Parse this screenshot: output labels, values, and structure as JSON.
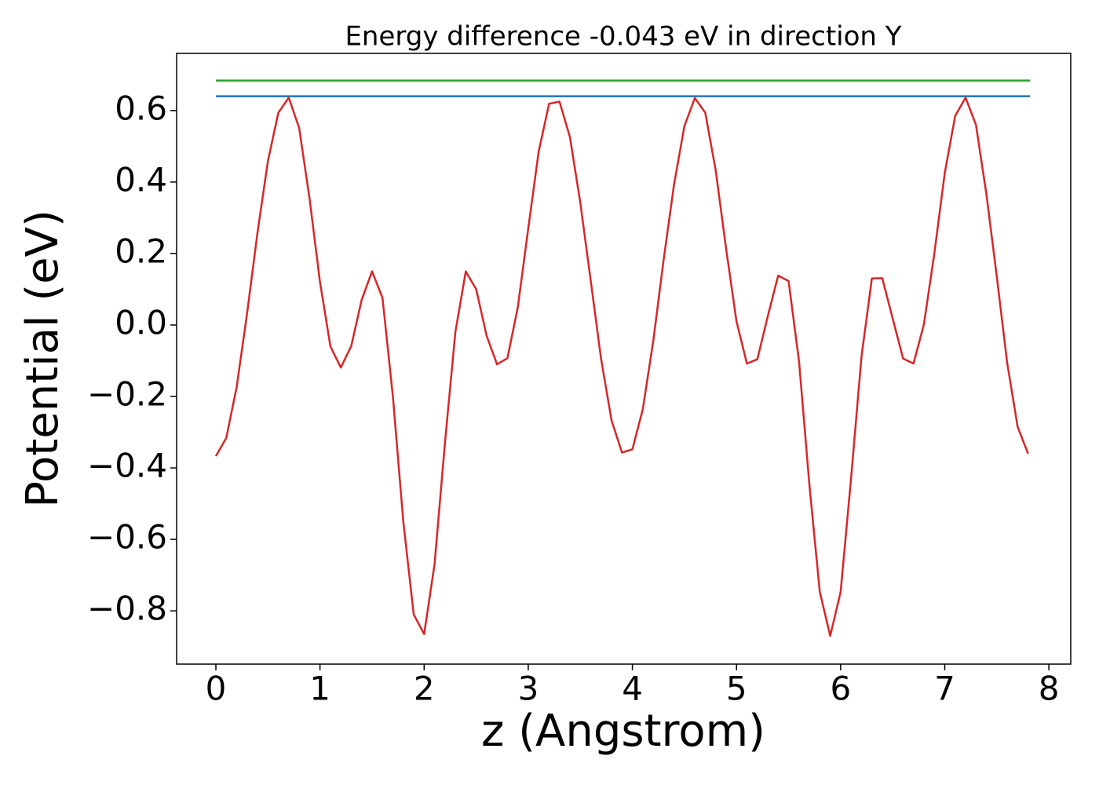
{
  "chart_data": {
    "type": "line",
    "title": "Energy difference -0.043 eV in direction Y",
    "xlabel": "z (Angstrom)",
    "ylabel": "Potential (eV)",
    "series": [
      {
        "color": "#2ca02c",
        "x": [
          0,
          7.82
        ],
        "values": [
          0.684,
          0.684
        ]
      },
      {
        "color": "#1f77b4",
        "x": [
          0,
          7.82
        ],
        "values": [
          0.64,
          0.64
        ]
      },
      {
        "color": "#d62728",
        "x": [
          0,
          0.1,
          0.2,
          0.3,
          0.4,
          0.5,
          0.6,
          0.7,
          0.8,
          0.9,
          1.0,
          1.1,
          1.2,
          1.3,
          1.4,
          1.5,
          1.6,
          1.7,
          1.8,
          1.9,
          2.0,
          2.1,
          2.2,
          2.3,
          2.4,
          2.5,
          2.6,
          2.7,
          2.8,
          2.9,
          3.0,
          3.1,
          3.2,
          3.3,
          3.4,
          3.5,
          3.6,
          3.7,
          3.8,
          3.9,
          4.0,
          4.1,
          4.2,
          4.3,
          4.4,
          4.5,
          4.6,
          4.7,
          4.8,
          4.9,
          5.0,
          5.1,
          5.2,
          5.3,
          5.4,
          5.5,
          5.6,
          5.7,
          5.8,
          5.9,
          6.0,
          6.1,
          6.2,
          6.3,
          6.4,
          6.5,
          6.6,
          6.7,
          6.8,
          6.9,
          7.0,
          7.1,
          7.2,
          7.3,
          7.4,
          7.5,
          7.6,
          7.7,
          7.8
        ],
        "values": [
          -0.367,
          -0.316,
          -0.173,
          0.033,
          0.259,
          0.459,
          0.594,
          0.636,
          0.551,
          0.353,
          0.12,
          -0.06,
          -0.119,
          -0.059,
          0.07,
          0.15,
          0.076,
          -0.2,
          -0.55,
          -0.81,
          -0.865,
          -0.67,
          -0.33,
          -0.02,
          0.15,
          0.1,
          -0.03,
          -0.11,
          -0.093,
          0.05,
          0.27,
          0.485,
          0.619,
          0.625,
          0.526,
          0.342,
          0.124,
          -0.096,
          -0.267,
          -0.357,
          -0.348,
          -0.236,
          -0.046,
          0.182,
          0.393,
          0.557,
          0.635,
          0.594,
          0.433,
          0.214,
          0.01,
          -0.108,
          -0.096,
          0.024,
          0.138,
          0.123,
          -0.1,
          -0.447,
          -0.747,
          -0.87,
          -0.747,
          -0.43,
          -0.09,
          0.13,
          0.131,
          0.018,
          -0.094,
          -0.108,
          0.002,
          0.2,
          0.425,
          0.585,
          0.636,
          0.56,
          0.366,
          0.135,
          -0.107,
          -0.285,
          -0.36
        ]
      }
    ],
    "xlim": [
      -0.377,
      8.21
    ],
    "ylim": [
      -0.949,
      0.76
    ],
    "xticks": [
      0,
      1,
      2,
      3,
      4,
      5,
      6,
      7,
      8
    ],
    "yticks": [
      {
        "value": -0.8,
        "label": "−0.8"
      },
      {
        "value": -0.6,
        "label": "−0.6"
      },
      {
        "value": -0.4,
        "label": "−0.4"
      },
      {
        "value": -0.2,
        "label": "−0.2"
      },
      {
        "value": 0,
        "label": "0.0"
      },
      0.2,
      0.4,
      0.6
    ]
  }
}
